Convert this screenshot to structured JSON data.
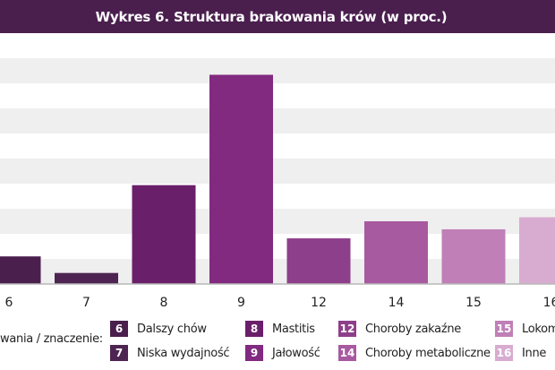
{
  "title": "Wykres 6. Struktura brakowania krów (w proc.)",
  "chart_data": {
    "type": "bar",
    "title": "Wykres 6. Struktura brakowania krów (w proc.)",
    "categories": [
      "6",
      "7",
      "8",
      "9",
      "12",
      "14",
      "15",
      "16"
    ],
    "values": [
      5.5,
      2.2,
      19.7,
      41.7,
      9.1,
      12.5,
      10.9,
      13.3
    ],
    "colors": [
      "#4a1f4e",
      "#4e2452",
      "#6a1f6a",
      "#812a80",
      "#8e3f8b",
      "#a85aa0",
      "#c07fb7",
      "#d8acd0"
    ],
    "ylim": [
      0,
      50
    ],
    "grid": true,
    "xlabel": "",
    "ylabel": ""
  },
  "legend": {
    "heading": "wania / znaczenie:",
    "items": [
      {
        "code": "6",
        "label": "Dalszy chów",
        "color": "#4a1f4e"
      },
      {
        "code": "7",
        "label": "Niska wydajność",
        "color": "#4e2452"
      },
      {
        "code": "8",
        "label": "Mastitis",
        "color": "#6a1f6a"
      },
      {
        "code": "9",
        "label": "Jałowość",
        "color": "#812a80"
      },
      {
        "code": "12",
        "label": "Choroby zakaźne",
        "color": "#8e3f8b"
      },
      {
        "code": "14",
        "label": "Choroby metaboliczne",
        "color": "#a85aa0"
      },
      {
        "code": "15",
        "label": "Lokom",
        "color": "#c07fb7"
      },
      {
        "code": "16",
        "label": "Inne",
        "color": "#d8acd0"
      }
    ]
  }
}
